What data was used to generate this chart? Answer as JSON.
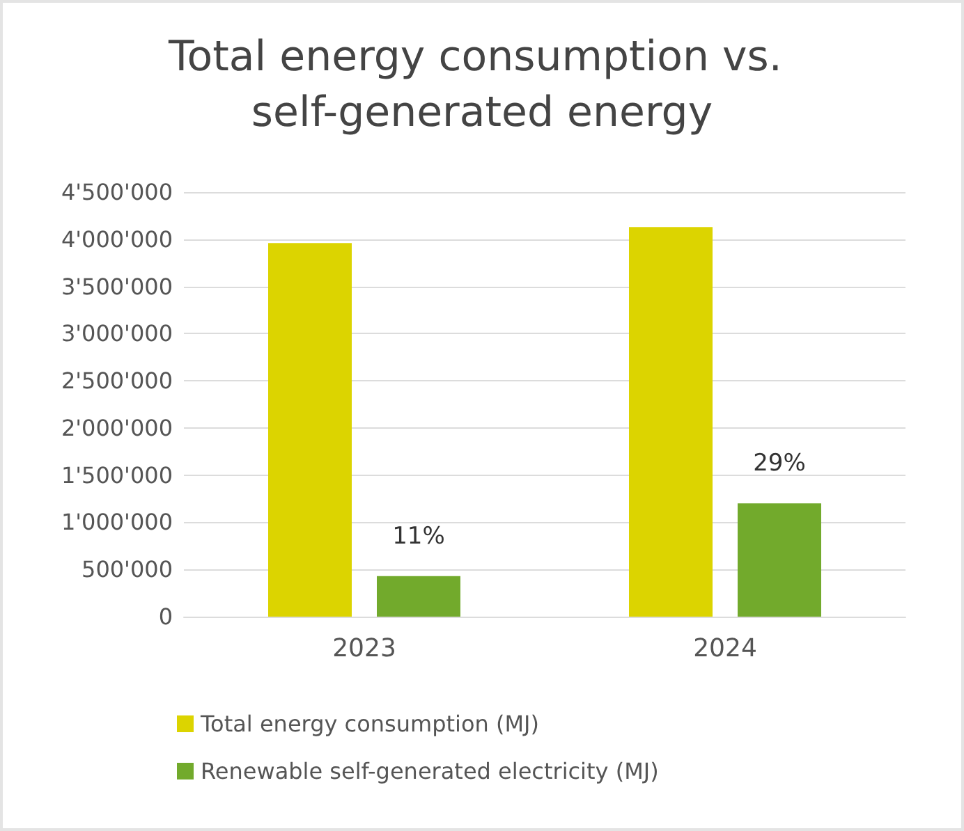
{
  "chart_data": {
    "type": "bar",
    "title": "Total energy consumption vs. self-generated energy",
    "categories": [
      "2023",
      "2024"
    ],
    "series": [
      {
        "name": "Total energy consumption (MJ)",
        "color": "#dcd400",
        "values": [
          3960000,
          4130000
        ]
      },
      {
        "name": "Renewable self-generated electricity (MJ)",
        "color": "#72aa2c",
        "values": [
          430000,
          1200000
        ]
      }
    ],
    "annotations": [
      "11%",
      "29%"
    ],
    "ylim": [
      0,
      4500000
    ],
    "yticks": [
      {
        "value": 0,
        "label": "0"
      },
      {
        "value": 500000,
        "label": "500'000"
      },
      {
        "value": 1000000,
        "label": "1'000'000"
      },
      {
        "value": 1500000,
        "label": "1'500'000"
      },
      {
        "value": 2000000,
        "label": "2'000'000"
      },
      {
        "value": 2500000,
        "label": "2'500'000"
      },
      {
        "value": 3000000,
        "label": "3'000'000"
      },
      {
        "value": 3500000,
        "label": "3'500'000"
      },
      {
        "value": 4000000,
        "label": "4'000'000"
      },
      {
        "value": 4500000,
        "label": "4'500'000"
      }
    ],
    "grid": "y",
    "legend": "bottom"
  }
}
